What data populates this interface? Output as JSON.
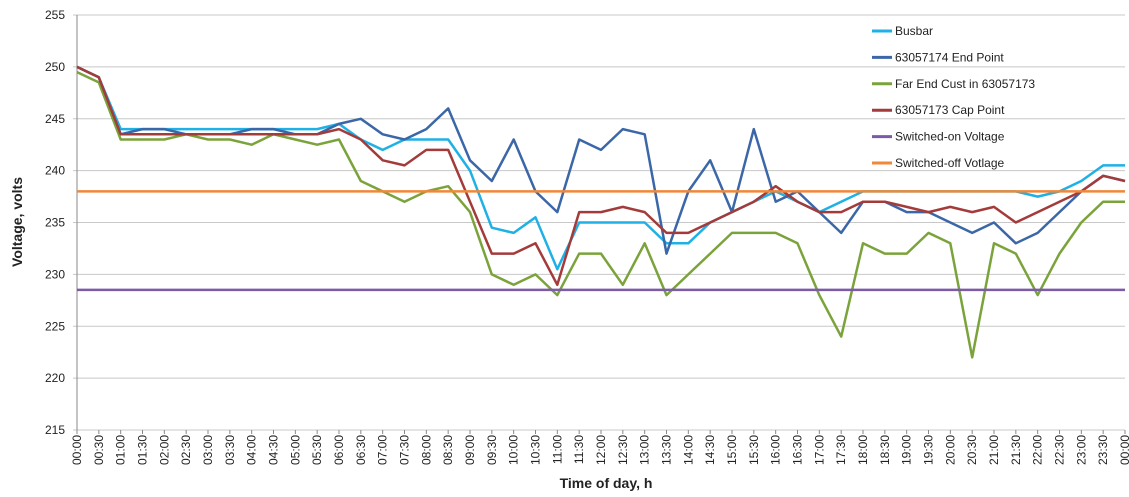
{
  "chart_data": {
    "type": "line",
    "x_label": "Time of day, h",
    "y_label": "Voltage, volts",
    "categories": [
      "00:00",
      "00:30",
      "01:00",
      "01:30",
      "02:00",
      "02:30",
      "03:00",
      "03:30",
      "04:00",
      "04:30",
      "05:00",
      "05:30",
      "06:00",
      "06:30",
      "07:00",
      "07:30",
      "08:00",
      "08:30",
      "09:00",
      "09:30",
      "10:00",
      "10:30",
      "11:00",
      "11:30",
      "12:00",
      "12:30",
      "13:00",
      "13:30",
      "14:00",
      "14:30",
      "15:00",
      "15:30",
      "16:00",
      "16:30",
      "17:00",
      "17:30",
      "18:00",
      "18:30",
      "19:00",
      "19:30",
      "20:00",
      "20:30",
      "21:00",
      "21:30",
      "22:00",
      "22:30",
      "23:00",
      "23:30",
      "00:00"
    ],
    "ylim": [
      215,
      255
    ],
    "yticks": [
      215,
      220,
      225,
      230,
      235,
      240,
      245,
      250,
      255
    ],
    "grid": true,
    "legend": "upper right",
    "series": [
      {
        "name": "Busbar",
        "color": "#1fb1e6",
        "values": [
          250,
          249,
          244,
          244,
          244,
          244,
          244,
          244,
          244,
          244,
          244,
          244,
          244.5,
          243,
          242,
          243,
          243,
          243,
          240,
          234.5,
          234,
          235.5,
          230.5,
          235,
          235,
          235,
          235,
          233,
          233,
          235,
          236,
          237,
          238,
          237,
          236,
          237,
          238,
          238,
          238,
          238,
          238,
          238,
          238,
          238,
          237.5,
          238,
          239,
          240.5,
          240.5
        ]
      },
      {
        "name": "63057174 End Point",
        "color": "#3b67a8",
        "values": [
          250,
          249,
          243.5,
          244,
          244,
          243.5,
          243.5,
          243.5,
          244,
          244,
          243.5,
          243.5,
          244.5,
          245,
          243.5,
          243,
          244,
          246,
          241,
          239,
          243,
          238,
          236,
          243,
          242,
          244,
          243.5,
          232,
          238,
          241,
          236,
          244,
          237,
          238,
          236,
          234,
          237,
          237,
          236,
          236,
          235,
          234,
          235,
          233,
          234,
          236,
          238,
          239.5,
          239
        ]
      },
      {
        "name": "Far End Cust in 63057173",
        "color": "#7ba33b",
        "values": [
          249.5,
          248.5,
          243,
          243,
          243,
          243.5,
          243,
          243,
          242.5,
          243.5,
          243,
          242.5,
          243,
          239,
          238,
          237,
          238,
          238.5,
          236,
          230,
          229,
          230,
          228,
          232,
          232,
          229,
          233,
          228,
          230,
          232,
          234,
          234,
          234,
          233,
          228,
          224,
          233,
          232,
          232,
          234,
          233,
          222,
          233,
          232,
          228,
          232,
          235,
          237,
          237
        ]
      },
      {
        "name": "63057173 Cap Point",
        "color": "#a33b3b",
        "values": [
          250,
          249,
          243.5,
          243.5,
          243.5,
          243.5,
          243.5,
          243.5,
          243.5,
          243.5,
          243.5,
          243.5,
          244,
          243,
          241,
          240.5,
          242,
          242,
          237,
          232,
          232,
          233,
          229,
          236,
          236,
          236.5,
          236,
          234,
          234,
          235,
          236,
          237,
          238.5,
          237,
          236,
          236,
          237,
          237,
          236.5,
          236,
          236.5,
          236,
          236.5,
          235,
          236,
          237,
          238,
          239.5,
          239
        ]
      },
      {
        "name": "Switched-on Voltage",
        "color": "#7b5ba6",
        "values": [
          228.5,
          228.5,
          228.5,
          228.5,
          228.5,
          228.5,
          228.5,
          228.5,
          228.5,
          228.5,
          228.5,
          228.5,
          228.5,
          228.5,
          228.5,
          228.5,
          228.5,
          228.5,
          228.5,
          228.5,
          228.5,
          228.5,
          228.5,
          228.5,
          228.5,
          228.5,
          228.5,
          228.5,
          228.5,
          228.5,
          228.5,
          228.5,
          228.5,
          228.5,
          228.5,
          228.5,
          228.5,
          228.5,
          228.5,
          228.5,
          228.5,
          228.5,
          228.5,
          228.5,
          228.5,
          228.5,
          228.5,
          228.5,
          228.5
        ]
      },
      {
        "name": "Switched-off Votlage",
        "color": "#f0883a",
        "values": [
          238,
          238,
          238,
          238,
          238,
          238,
          238,
          238,
          238,
          238,
          238,
          238,
          238,
          238,
          238,
          238,
          238,
          238,
          238,
          238,
          238,
          238,
          238,
          238,
          238,
          238,
          238,
          238,
          238,
          238,
          238,
          238,
          238,
          238,
          238,
          238,
          238,
          238,
          238,
          238,
          238,
          238,
          238,
          238,
          238,
          238,
          238,
          238,
          238
        ]
      }
    ]
  }
}
